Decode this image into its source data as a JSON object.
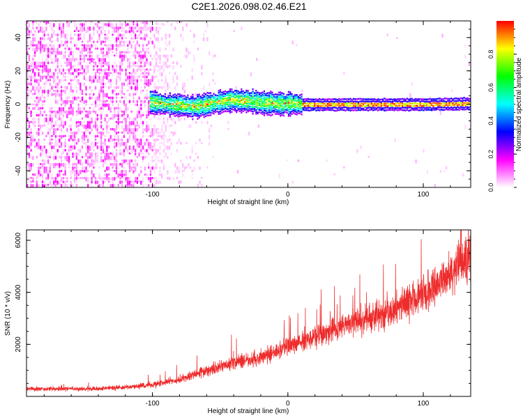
{
  "figure": {
    "title": "C2E1.2026.098.02.46.E21"
  },
  "chart_data": [
    {
      "type": "heatmap",
      "xlabel": "Height of straight line (km)",
      "ylabel": "Frequency (Hz)",
      "xlim": [
        -193,
        135
      ],
      "ylim": [
        -50,
        50
      ],
      "xticks": [
        -100,
        0,
        100
      ],
      "yticks": [
        -40,
        -20,
        0,
        20,
        40
      ],
      "colorbar": {
        "label": "Normalized spectral amplitude",
        "range": [
          0,
          1
        ],
        "ticks": [
          "0.0",
          "0.2",
          "0.4",
          "0.6",
          "0.8"
        ],
        "colors": [
          "#ffffff",
          "#ff00ff",
          "#0000ff",
          "#00ffff",
          "#00ff00",
          "#ffff00",
          "#ff0000"
        ]
      },
      "ridge_frequency_hz": [
        [
          -102,
          2
        ],
        [
          -90,
          0.5
        ],
        [
          -80,
          0
        ],
        [
          -70,
          -1
        ],
        [
          -60,
          0.5
        ],
        [
          -50,
          2
        ],
        [
          -40,
          3
        ],
        [
          -30,
          2.5
        ],
        [
          -20,
          1.5
        ],
        [
          -10,
          1
        ],
        [
          0,
          1
        ],
        [
          10,
          0.5
        ],
        [
          20,
          0.5
        ],
        [
          40,
          0.5
        ],
        [
          60,
          0.5
        ],
        [
          80,
          0.5
        ],
        [
          100,
          0.5
        ],
        [
          120,
          0.8
        ],
        [
          135,
          1
        ]
      ],
      "noise_region_km": [
        -193,
        -100
      ]
    },
    {
      "type": "line",
      "xlabel": "Height of straight line (km)",
      "ylabel": "SNR (10 * v/v)",
      "xlim": [
        -193,
        135
      ],
      "ylim": [
        0,
        6400
      ],
      "xticks": [
        -100,
        0,
        100
      ],
      "yticks": [
        2000,
        4000,
        6000
      ],
      "color": "#ee2c2c",
      "trend": [
        [
          -193,
          300
        ],
        [
          -150,
          280
        ],
        [
          -120,
          350
        ],
        [
          -100,
          450
        ],
        [
          -80,
          650
        ],
        [
          -60,
          1000
        ],
        [
          -40,
          1300
        ],
        [
          -20,
          1500
        ],
        [
          0,
          1900
        ],
        [
          20,
          2300
        ],
        [
          40,
          2700
        ],
        [
          60,
          3000
        ],
        [
          80,
          3400
        ],
        [
          100,
          3900
        ],
        [
          120,
          4800
        ],
        [
          135,
          5400
        ]
      ]
    }
  ]
}
